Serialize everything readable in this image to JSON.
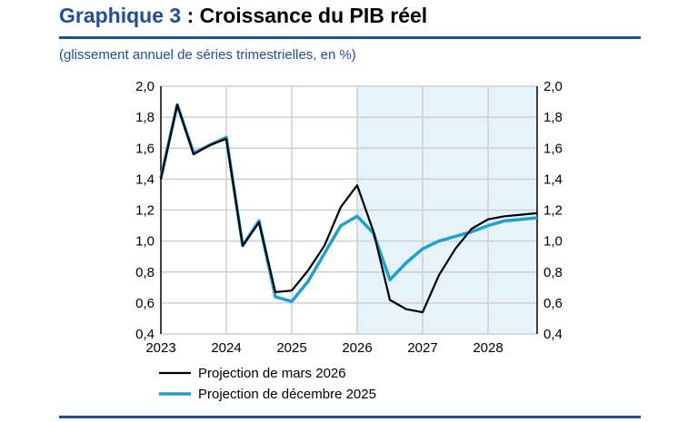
{
  "title_prefix": "Graphique 3",
  "title_rest": " : Croissance du PIB réel",
  "subtitle": "(glissement annuel de séries trimestrielles, en %)",
  "chart_data": {
    "type": "line",
    "title": "Croissance du PIB réel",
    "ylabel": "glissement annuel de séries trimestrielles, en %",
    "ylim": [
      0.4,
      2.0
    ],
    "yticks": [
      "0,4",
      "0,6",
      "0,8",
      "1,0",
      "1,2",
      "1,4",
      "1,6",
      "1,8",
      "2,0"
    ],
    "xticks": [
      "2023",
      "2024",
      "2025",
      "2026",
      "2027",
      "2028"
    ],
    "x_start": 2023,
    "x_step": 0.25,
    "projection_start": 2026,
    "grid": true,
    "legend": "bottom",
    "series": [
      {
        "name": "Projection de mars 2026",
        "color": "#000000",
        "values": [
          1.4,
          1.88,
          1.56,
          1.62,
          1.66,
          0.97,
          1.12,
          0.67,
          0.68,
          0.81,
          0.97,
          1.22,
          1.36,
          1.06,
          0.62,
          0.56,
          0.54,
          0.78,
          0.95,
          1.08,
          1.14,
          1.16,
          1.17,
          1.18
        ]
      },
      {
        "name": "Projection de décembre 2025",
        "color": "#1ba0d8",
        "values": [
          1.41,
          1.88,
          1.57,
          1.62,
          1.67,
          0.97,
          1.13,
          0.64,
          0.61,
          0.74,
          0.92,
          1.1,
          1.16,
          1.05,
          0.75,
          0.86,
          0.95,
          1.0,
          1.03,
          1.06,
          1.1,
          1.13,
          1.14,
          1.15
        ]
      }
    ]
  }
}
